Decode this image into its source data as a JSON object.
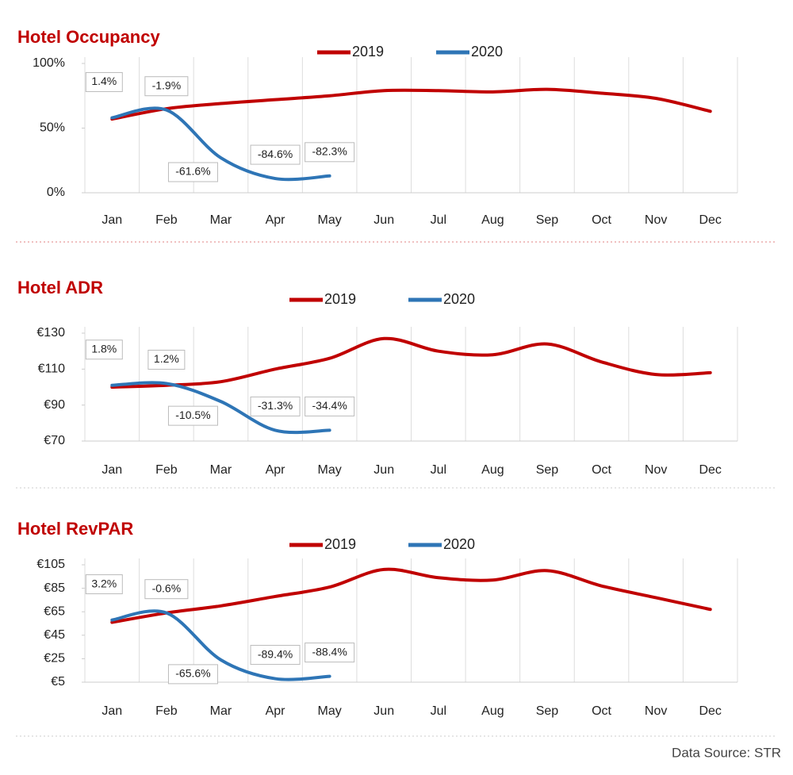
{
  "chart_data": [
    {
      "type": "line",
      "title": "Hotel Occupancy",
      "categories": [
        "Jan",
        "Feb",
        "Mar",
        "Apr",
        "May",
        "Jun",
        "Jul",
        "Aug",
        "Sep",
        "Oct",
        "Nov",
        "Dec"
      ],
      "series": [
        {
          "name": "2019",
          "color": "#c00000",
          "values": [
            57,
            65,
            69,
            72,
            75,
            79,
            79,
            78,
            80,
            77,
            73,
            63
          ]
        },
        {
          "name": "2020",
          "color": "#2e75b6",
          "values": [
            58,
            64,
            27,
            11,
            13,
            null,
            null,
            null,
            null,
            null,
            null,
            null
          ]
        }
      ],
      "ylim": [
        0,
        100
      ],
      "yticks": [
        {
          "value": 0,
          "label": "0%"
        },
        {
          "value": 50,
          "label": "50%"
        },
        {
          "value": 100,
          "label": "100%"
        }
      ],
      "annotations": [
        {
          "category": "Jan",
          "text": "1.4%"
        },
        {
          "category": "Feb",
          "text": "-1.9%"
        },
        {
          "category": "Mar",
          "text": "-61.6%"
        },
        {
          "category": "Apr",
          "text": "-84.6%"
        },
        {
          "category": "May",
          "text": "-82.3%"
        }
      ]
    },
    {
      "type": "line",
      "title": "Hotel ADR",
      "categories": [
        "Jan",
        "Feb",
        "Mar",
        "Apr",
        "May",
        "Jun",
        "Jul",
        "Aug",
        "Sep",
        "Oct",
        "Nov",
        "Dec"
      ],
      "series": [
        {
          "name": "2019",
          "color": "#c00000",
          "values": [
            100,
            101,
            103,
            110,
            116,
            127,
            120,
            118,
            124,
            114,
            107,
            108
          ]
        },
        {
          "name": "2020",
          "color": "#2e75b6",
          "values": [
            101,
            102,
            92,
            76,
            76,
            null,
            null,
            null,
            null,
            null,
            null,
            null
          ]
        }
      ],
      "ylim": [
        70,
        130
      ],
      "yticks": [
        {
          "value": 70,
          "label": "€70"
        },
        {
          "value": 90,
          "label": "€90"
        },
        {
          "value": 110,
          "label": "€110"
        },
        {
          "value": 130,
          "label": "€130"
        }
      ],
      "annotations": [
        {
          "category": "Jan",
          "text": "1.8%"
        },
        {
          "category": "Feb",
          "text": "1.2%"
        },
        {
          "category": "Mar",
          "text": "-10.5%"
        },
        {
          "category": "Apr",
          "text": "-31.3%"
        },
        {
          "category": "May",
          "text": "-34.4%"
        }
      ]
    },
    {
      "type": "line",
      "title": "Hotel RevPAR",
      "categories": [
        "Jan",
        "Feb",
        "Mar",
        "Apr",
        "May",
        "Jun",
        "Jul",
        "Aug",
        "Sep",
        "Oct",
        "Nov",
        "Dec"
      ],
      "series": [
        {
          "name": "2019",
          "color": "#c00000",
          "values": [
            56,
            64,
            70,
            78,
            86,
            101,
            94,
            92,
            100,
            87,
            77,
            67
          ]
        },
        {
          "name": "2020",
          "color": "#2e75b6",
          "values": [
            58,
            64,
            24,
            8,
            10,
            null,
            null,
            null,
            null,
            null,
            null,
            null
          ]
        }
      ],
      "ylim": [
        5,
        105
      ],
      "yticks": [
        {
          "value": 5,
          "label": "€5"
        },
        {
          "value": 25,
          "label": "€25"
        },
        {
          "value": 45,
          "label": "€45"
        },
        {
          "value": 65,
          "label": "€65"
        },
        {
          "value": 85,
          "label": "€85"
        },
        {
          "value": 105,
          "label": "€105"
        }
      ],
      "annotations": [
        {
          "category": "Jan",
          "text": "3.2%"
        },
        {
          "category": "Feb",
          "text": "-0.6%"
        },
        {
          "category": "Mar",
          "text": "-65.6%"
        },
        {
          "category": "Apr",
          "text": "-89.4%"
        },
        {
          "category": "May",
          "text": "-88.4%"
        }
      ]
    }
  ],
  "source": "Data Source: STR"
}
